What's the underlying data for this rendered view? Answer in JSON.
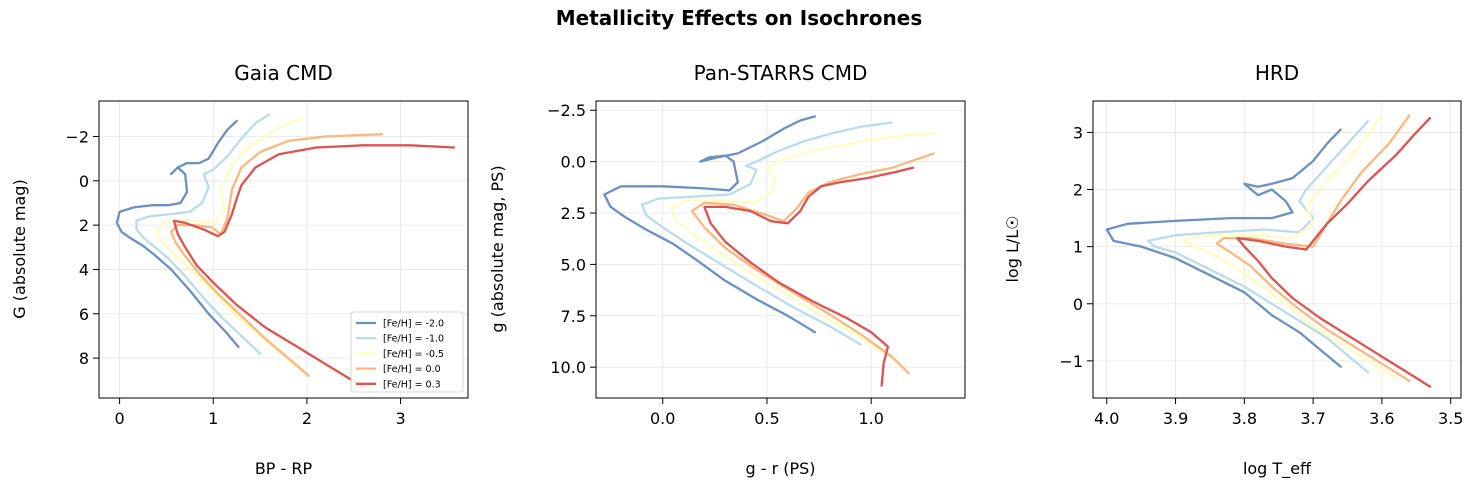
{
  "figure": {
    "title": "Metallicity Effects on Isochrones"
  },
  "colors": {
    "m2.0": "#6a90c4",
    "m1.0": "#b8dcec",
    "m0.5": "#fefcc0",
    "p0.0": "#fbb77c",
    "p0.3": "#dc5350"
  },
  "chart_data": [
    {
      "type": "line",
      "title": "Gaia CMD",
      "xlabel": "BP - RP",
      "ylabel": "G (absolute mag)",
      "xlim": [
        -0.22,
        3.72
      ],
      "ylim": [
        9.8,
        -3.6
      ],
      "y_inverted": true,
      "xticks": [
        0,
        1,
        2,
        3
      ],
      "xtick_labels": [
        "0",
        "1",
        "2",
        "3"
      ],
      "yticks": [
        -2,
        0,
        2,
        4,
        6,
        8
      ],
      "ytick_labels": [
        "−2",
        "0",
        "2",
        "4",
        "6",
        "8"
      ],
      "grid": true,
      "legend": "lower right",
      "series": [
        {
          "name": "[Fe/H] = -2.0",
          "color_key": "m2.0",
          "x": [
            1.27,
            1.13,
            0.95,
            0.76,
            0.55,
            0.36,
            0.24,
            0.12,
            0.02,
            -0.03,
            0.0,
            0.15,
            0.35,
            0.52,
            0.65,
            0.72,
            0.7,
            0.62,
            0.55,
            0.62,
            0.72,
            0.85,
            0.95,
            1.05,
            1.15,
            1.25
          ],
          "y": [
            7.5,
            6.8,
            6.0,
            5.0,
            4.0,
            3.3,
            2.9,
            2.6,
            2.3,
            1.9,
            1.4,
            1.2,
            1.1,
            1.1,
            1.0,
            0.5,
            -0.3,
            -0.6,
            -0.3,
            -0.6,
            -0.8,
            -0.8,
            -1.0,
            -1.7,
            -2.3,
            -2.7
          ]
        },
        {
          "name": "[Fe/H] = -1.0",
          "color_key": "m1.0",
          "x": [
            1.5,
            1.3,
            1.1,
            0.9,
            0.7,
            0.52,
            0.38,
            0.26,
            0.18,
            0.18,
            0.32,
            0.55,
            0.75,
            0.88,
            0.95,
            0.9,
            1.0,
            1.15,
            1.3,
            1.45,
            1.6
          ],
          "y": [
            7.8,
            7.0,
            6.2,
            5.3,
            4.3,
            3.5,
            3.0,
            2.6,
            2.2,
            1.8,
            1.6,
            1.5,
            1.4,
            1.0,
            0.3,
            -0.3,
            -0.5,
            -1.1,
            -1.9,
            -2.6,
            -3.0
          ]
        },
        {
          "name": "[Fe/H] = -0.5",
          "color_key": "m0.5",
          "x": [
            1.98,
            1.75,
            1.5,
            1.25,
            1.0,
            0.8,
            0.6,
            0.48,
            0.4,
            0.45,
            0.6,
            0.8,
            1.0,
            1.12,
            1.08,
            1.2,
            1.35,
            1.55,
            1.75,
            1.95
          ],
          "y": [
            8.7,
            7.9,
            7.0,
            6.1,
            5.0,
            4.2,
            3.4,
            2.9,
            2.4,
            1.9,
            1.8,
            1.8,
            1.9,
            1.3,
            0.3,
            -0.7,
            -1.4,
            -2.0,
            -2.5,
            -2.8
          ]
        },
        {
          "name": "[Fe/H] = 0.0",
          "color_key": "p0.0",
          "x": [
            2.02,
            1.8,
            1.55,
            1.3,
            1.05,
            0.85,
            0.7,
            0.6,
            0.55,
            0.62,
            0.8,
            0.98,
            1.08,
            1.15,
            1.2,
            1.3,
            1.5,
            1.8,
            2.2,
            2.8
          ],
          "y": [
            8.8,
            8.0,
            7.1,
            6.1,
            5.1,
            4.2,
            3.4,
            2.8,
            2.3,
            2.0,
            2.0,
            2.1,
            2.4,
            1.7,
            0.4,
            -0.6,
            -1.3,
            -1.8,
            -2.0,
            -2.1
          ]
        },
        {
          "name": "[Fe/H] = 0.3",
          "color_key": "p0.3",
          "x": [
            2.6,
            2.25,
            1.9,
            1.55,
            1.25,
            1.0,
            0.82,
            0.7,
            0.62,
            0.58,
            0.7,
            0.9,
            1.05,
            1.12,
            1.2,
            1.25,
            1.3,
            1.45,
            1.7,
            2.1,
            2.6,
            3.1,
            3.57
          ],
          "y": [
            9.3,
            8.4,
            7.5,
            6.6,
            5.6,
            4.6,
            3.8,
            3.0,
            2.4,
            1.8,
            1.9,
            2.2,
            2.5,
            2.3,
            1.5,
            0.8,
            0.2,
            -0.6,
            -1.2,
            -1.5,
            -1.6,
            -1.6,
            -1.5
          ]
        }
      ]
    },
    {
      "type": "line",
      "title": "Pan-STARRS CMD",
      "xlabel": "g - r (PS)",
      "ylabel": "g (absolute mag, PS)",
      "xlim": [
        -0.32,
        1.45
      ],
      "ylim": [
        11.5,
        -2.95
      ],
      "y_inverted": true,
      "xticks": [
        0.0,
        0.5,
        1.0
      ],
      "xtick_labels": [
        "0.0",
        "0.5",
        "1.0"
      ],
      "yticks": [
        -2.5,
        0.0,
        2.5,
        5.0,
        7.5,
        10.0
      ],
      "ytick_labels": [
        "−2.5",
        "0.0",
        "2.5",
        "5.0",
        "7.5",
        "10.0"
      ],
      "grid": true,
      "series": [
        {
          "name": "[Fe/H] = -2.0",
          "color_key": "m2.0",
          "x": [
            0.73,
            0.6,
            0.45,
            0.3,
            0.15,
            0.05,
            -0.08,
            -0.18,
            -0.25,
            -0.28,
            -0.2,
            0.0,
            0.2,
            0.32,
            0.36,
            0.34,
            0.3,
            0.22,
            0.18,
            0.26,
            0.36,
            0.48,
            0.58,
            0.66,
            0.73
          ],
          "y": [
            8.3,
            7.5,
            6.7,
            5.8,
            4.7,
            4.0,
            3.3,
            2.7,
            2.2,
            1.6,
            1.2,
            1.2,
            1.3,
            1.4,
            1.0,
            0.0,
            -0.3,
            -0.2,
            0.0,
            -0.2,
            -0.4,
            -1.0,
            -1.6,
            -2.0,
            -2.2
          ]
        },
        {
          "name": "[Fe/H] = -1.0",
          "color_key": "m1.0",
          "x": [
            0.95,
            0.8,
            0.63,
            0.46,
            0.28,
            0.12,
            0.0,
            -0.08,
            -0.1,
            -0.02,
            0.15,
            0.32,
            0.42,
            0.45,
            0.4,
            0.45,
            0.55,
            0.68,
            0.82,
            0.95,
            1.1
          ],
          "y": [
            8.9,
            8.0,
            7.1,
            6.1,
            5.0,
            4.0,
            3.2,
            2.6,
            2.1,
            1.8,
            1.7,
            1.6,
            1.1,
            0.4,
            0.2,
            0.0,
            -0.5,
            -1.0,
            -1.4,
            -1.7,
            -1.9
          ]
        },
        {
          "name": "[Fe/H] = -0.5",
          "color_key": "m0.5",
          "x": [
            1.1,
            0.95,
            0.78,
            0.6,
            0.42,
            0.26,
            0.14,
            0.06,
            0.04,
            0.12,
            0.28,
            0.44,
            0.52,
            0.54,
            0.5,
            0.6,
            0.75,
            0.92,
            1.1,
            1.3
          ],
          "y": [
            9.5,
            8.6,
            7.6,
            6.5,
            5.4,
            4.3,
            3.5,
            2.8,
            2.2,
            1.9,
            1.9,
            2.0,
            1.5,
            0.8,
            0.3,
            -0.2,
            -0.6,
            -0.9,
            -1.2,
            -1.4
          ]
        },
        {
          "name": "[Fe/H] = 0.0",
          "color_key": "p0.0",
          "x": [
            1.18,
            1.1,
            0.95,
            0.78,
            0.6,
            0.44,
            0.3,
            0.2,
            0.14,
            0.2,
            0.34,
            0.5,
            0.58,
            0.64,
            0.7,
            0.8,
            0.95,
            1.1,
            1.3
          ],
          "y": [
            10.3,
            9.5,
            8.4,
            7.3,
            6.2,
            5.2,
            4.2,
            3.2,
            2.4,
            2.0,
            2.1,
            2.6,
            2.9,
            2.3,
            1.5,
            1.0,
            0.6,
            0.3,
            -0.4
          ]
        },
        {
          "name": "[Fe/H] = 0.3",
          "color_key": "p0.3",
          "x": [
            1.05,
            1.06,
            1.08,
            1.0,
            0.88,
            0.72,
            0.56,
            0.42,
            0.3,
            0.23,
            0.2,
            0.3,
            0.42,
            0.52,
            0.6,
            0.66,
            0.7,
            0.76,
            0.85,
            0.98,
            1.12,
            1.2
          ],
          "y": [
            10.9,
            9.8,
            9.0,
            8.3,
            7.6,
            6.8,
            5.9,
            4.9,
            3.9,
            3.0,
            2.2,
            2.2,
            2.4,
            2.9,
            3.0,
            2.4,
            1.7,
            1.2,
            1.0,
            0.8,
            0.5,
            0.3
          ]
        }
      ]
    },
    {
      "type": "line",
      "title": "HRD",
      "xlabel": "log T_eff",
      "ylabel": "log L/L☉",
      "xlim": [
        4.02,
        3.485
      ],
      "ylim": [
        -1.65,
        3.55
      ],
      "x_inverted": true,
      "xticks": [
        4.0,
        3.9,
        3.8,
        3.7,
        3.6,
        3.5
      ],
      "xtick_labels": [
        "4.0",
        "3.9",
        "3.8",
        "3.7",
        "3.6",
        "3.5"
      ],
      "yticks": [
        -1,
        0,
        1,
        2,
        3
      ],
      "ytick_labels": [
        "−1",
        "0",
        "1",
        "2",
        "3"
      ],
      "grid": true,
      "series": [
        {
          "name": "[Fe/H] = -2.0",
          "color_key": "m2.0",
          "x": [
            3.66,
            3.69,
            3.72,
            3.76,
            3.8,
            3.85,
            3.9,
            3.95,
            3.99,
            4.0,
            3.97,
            3.9,
            3.82,
            3.76,
            3.73,
            3.74,
            3.76,
            3.78,
            3.8,
            3.78,
            3.76,
            3.73,
            3.7,
            3.68,
            3.66
          ],
          "y": [
            -1.1,
            -0.8,
            -0.5,
            -0.2,
            0.2,
            0.5,
            0.8,
            1.0,
            1.1,
            1.3,
            1.4,
            1.45,
            1.5,
            1.5,
            1.6,
            1.8,
            2.0,
            1.9,
            2.1,
            2.05,
            2.1,
            2.2,
            2.5,
            2.8,
            3.05
          ]
        },
        {
          "name": "[Fe/H] = -1.0",
          "color_key": "m1.0",
          "x": [
            3.62,
            3.65,
            3.68,
            3.72,
            3.76,
            3.8,
            3.85,
            3.9,
            3.93,
            3.94,
            3.9,
            3.84,
            3.77,
            3.72,
            3.7,
            3.72,
            3.71,
            3.68,
            3.65,
            3.62
          ],
          "y": [
            -1.2,
            -0.9,
            -0.6,
            -0.3,
            0.0,
            0.3,
            0.6,
            0.9,
            1.0,
            1.1,
            1.2,
            1.25,
            1.3,
            1.25,
            1.5,
            1.8,
            2.0,
            2.4,
            2.8,
            3.2
          ]
        },
        {
          "name": "[Fe/H] = -0.5",
          "color_key": "m0.5",
          "x": [
            3.58,
            3.62,
            3.66,
            3.7,
            3.74,
            3.78,
            3.82,
            3.86,
            3.89,
            3.88,
            3.84,
            3.78,
            3.73,
            3.7,
            3.71,
            3.69,
            3.66,
            3.63,
            3.6
          ],
          "y": [
            -1.3,
            -1.0,
            -0.7,
            -0.4,
            0.0,
            0.35,
            0.7,
            0.95,
            1.1,
            1.15,
            1.2,
            1.2,
            1.15,
            1.4,
            1.7,
            2.0,
            2.4,
            2.8,
            3.3
          ]
        },
        {
          "name": "[Fe/H] = 0.0",
          "color_key": "p0.0",
          "x": [
            3.56,
            3.6,
            3.64,
            3.68,
            3.72,
            3.76,
            3.79,
            3.82,
            3.84,
            3.83,
            3.79,
            3.74,
            3.7,
            3.68,
            3.66,
            3.63,
            3.59,
            3.56
          ],
          "y": [
            -1.35,
            -1.05,
            -0.75,
            -0.45,
            -0.1,
            0.3,
            0.65,
            0.9,
            1.05,
            1.15,
            1.15,
            1.05,
            1.0,
            1.4,
            1.8,
            2.3,
            2.8,
            3.3
          ]
        },
        {
          "name": "[Fe/H] = 0.3",
          "color_key": "p0.3",
          "x": [
            3.53,
            3.57,
            3.61,
            3.65,
            3.69,
            3.73,
            3.76,
            3.78,
            3.8,
            3.81,
            3.78,
            3.74,
            3.71,
            3.7,
            3.68,
            3.65,
            3.62,
            3.58,
            3.55,
            3.53
          ],
          "y": [
            -1.45,
            -1.15,
            -0.85,
            -0.55,
            -0.25,
            0.1,
            0.45,
            0.75,
            1.0,
            1.15,
            1.1,
            1.0,
            0.95,
            1.1,
            1.4,
            1.75,
            2.15,
            2.6,
            3.0,
            3.25
          ]
        }
      ]
    }
  ]
}
